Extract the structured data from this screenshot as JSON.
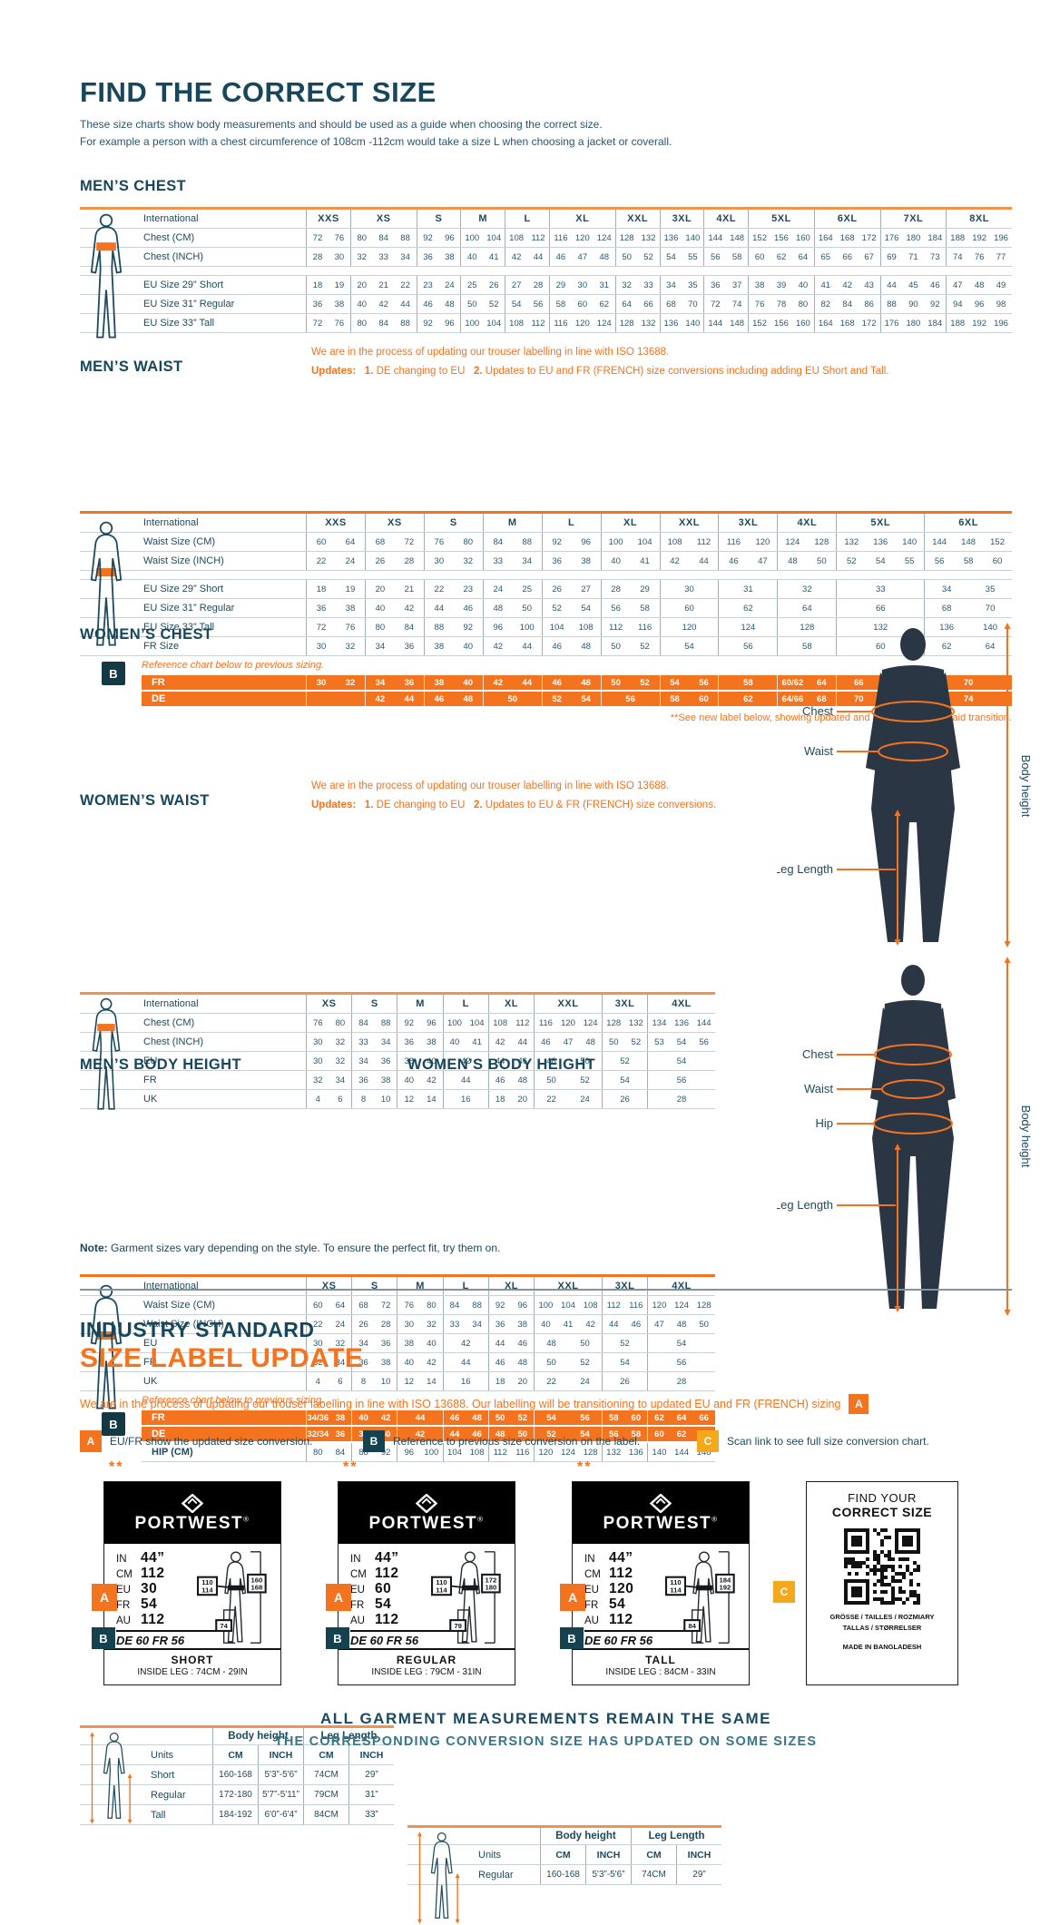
{
  "colors": {
    "teal": "#17475c",
    "orange": "#f4731f",
    "amber": "#f6a81c",
    "label_black": "#000000"
  },
  "page": {
    "title": "FIND THE CORRECT SIZE",
    "intro_line1": "These size charts show body measurements and should be used as a guide when choosing the correct size.",
    "intro_line2": "For example a person with a chest circumference of 108cm -112cm would take a size L when choosing a jacket or coverall.",
    "note_label": "Note:",
    "note_text": " Garment sizes vary depending on the style. To ensure the perfect fit, try them on."
  },
  "tables": {
    "mens_chest": {
      "title": "MEN’S CHEST",
      "header_label": "International",
      "columns": [
        {
          "label": "XXS",
          "span": 2
        },
        {
          "label": "XS",
          "span": 3
        },
        {
          "label": "S",
          "span": 2
        },
        {
          "label": "M",
          "span": 2
        },
        {
          "label": "L",
          "span": 2
        },
        {
          "label": "XL",
          "span": 3
        },
        {
          "label": "XXL",
          "span": 2
        },
        {
          "label": "3XL",
          "span": 2
        },
        {
          "label": "4XL",
          "span": 2
        },
        {
          "label": "5XL",
          "span": 3
        },
        {
          "label": "6XL",
          "span": 3
        },
        {
          "label": "7XL",
          "span": 3
        },
        {
          "label": "8XL",
          "span": 3
        }
      ],
      "rows": [
        {
          "label": "Chest (CM)",
          "cells": [
            "72 76",
            "80 84 88",
            "92 96",
            "100 104",
            "108 112",
            "116 120 124",
            "128 132",
            "136 140",
            "144 148",
            "152 156 160",
            "164 168 172",
            "176 180 184",
            "188 192 196"
          ]
        },
        {
          "label": "Chest (INCH)",
          "cells": [
            "28 30",
            "32 33 34",
            "36 38",
            "40 41",
            "42 44",
            "46 47 48",
            "50 52",
            "54 55",
            "56 58",
            "60 62 64",
            "65 66 67",
            "69 71 73",
            "74 76 77"
          ]
        },
        {
          "gap": true
        },
        {
          "label": "EU Size 29” Short",
          "cells": [
            "18 19",
            "20 21 22",
            "23 24",
            "25 26",
            "27 28",
            "29 30 31",
            "32 33",
            "34 35",
            "36 37",
            "38 39 40",
            "41 42 43",
            "44 45 46",
            "47 48 49"
          ]
        },
        {
          "label": "EU Size 31” Regular",
          "cells": [
            "36 38",
            "40 42 44",
            "46 48",
            "50 52",
            "54 56",
            "58 60 62",
            "64 66",
            "68 70",
            "72 74",
            "76 78 80",
            "82 84 86",
            "88 90 92",
            "94 96 98"
          ]
        },
        {
          "label": "EU Size 33” Tall",
          "cells": [
            "72 76",
            "80 84 88",
            "92 96",
            "100 104",
            "108 112",
            "116 120 124",
            "128 132",
            "136 140",
            "144 148",
            "152 156 160",
            "164 168 172",
            "176 180 184",
            "188 192 196"
          ]
        }
      ]
    },
    "mens_waist": {
      "title": "MEN’S WAIST",
      "header_label": "International",
      "notice": {
        "line1": "We are in the process of updating our trouser labelling in line with ISO 13688.",
        "updates_label": "Updates:",
        "update1_num": "1.",
        "update1_text": "DE changing to EU",
        "update2_num": "2.",
        "update2_text": "Updates to EU and FR (FRENCH) size conversions including adding EU Short and Tall."
      },
      "columns": [
        {
          "label": "XXS",
          "span": 2
        },
        {
          "label": "XS",
          "span": 2
        },
        {
          "label": "S",
          "span": 2
        },
        {
          "label": "M",
          "span": 2
        },
        {
          "label": "L",
          "span": 2
        },
        {
          "label": "XL",
          "span": 2
        },
        {
          "label": "XXL",
          "span": 2
        },
        {
          "label": "3XL",
          "span": 2
        },
        {
          "label": "4XL",
          "span": 2
        },
        {
          "label": "5XL",
          "span": 3
        },
        {
          "label": "6XL",
          "span": 3
        }
      ],
      "rows": [
        {
          "label": "Waist Size (CM)",
          "cells": [
            "60 64",
            "68 72",
            "76 80",
            "84 88",
            "92 96",
            "100 104",
            "108 112",
            "116 120",
            "124 128",
            "132 136 140",
            "144 148 152"
          ]
        },
        {
          "label": "Waist Size (INCH)",
          "cells": [
            "22 24",
            "26 28",
            "30 32",
            "33 34",
            "36 38",
            "40 41",
            "42 44",
            "46 47",
            "48 50",
            "52 54 55",
            "56 58 60"
          ]
        },
        {
          "gap": true
        },
        {
          "label": "EU Size 29” Short",
          "cells": [
            "18 19",
            "20 21",
            "22 23",
            "24 25",
            "26 27",
            "28 29",
            "30",
            "31",
            "32",
            "33",
            "34 35"
          ]
        },
        {
          "label": "EU Size 31” Regular",
          "cells": [
            "36 38",
            "40 42",
            "44 46",
            "48 50",
            "52 54",
            "56 58",
            "60",
            "62",
            "64",
            "66",
            "68 70"
          ]
        },
        {
          "label": "EU Size 33” Tall",
          "cells": [
            "72 76",
            "80 84",
            "88 92",
            "96 100",
            "104 108",
            "112 116",
            "120",
            "124",
            "128",
            "132",
            "136 140"
          ]
        },
        {
          "label": "FR Size",
          "cells": [
            "30 32",
            "34 36",
            "38 40",
            "42 44",
            "46 48",
            "50 52",
            "54",
            "56",
            "58",
            "60",
            "62 64"
          ]
        }
      ],
      "reference": {
        "intro": "Reference chart below to previous sizing.",
        "badge": "B",
        "rows": [
          {
            "label": "FR",
            "style": "orange",
            "cells": [
              "30 32",
              "34 36",
              "38 40",
              "42 44",
              "46 48",
              "50 52",
              "54 56",
              "58",
              "60/62 64",
              "66 68",
              "70"
            ]
          },
          {
            "label": "DE",
            "style": "orange",
            "cells": [
              "",
              "42 44",
              "46 48",
              "50",
              "52 54",
              "56",
              "58 60",
              "62",
              "64/66 68",
              "70 72",
              "74"
            ]
          }
        ]
      },
      "footnote": "**See new label below, showing updated and previous sizing to aid transition."
    },
    "womens_chest": {
      "title": "WOMEN’S CHEST",
      "header_label": "International",
      "columns": [
        {
          "label": "XS",
          "span": 2
        },
        {
          "label": "S",
          "span": 2
        },
        {
          "label": "M",
          "span": 2
        },
        {
          "label": "L",
          "span": 2
        },
        {
          "label": "XL",
          "span": 2
        },
        {
          "label": "XXL",
          "span": 3
        },
        {
          "label": "3XL",
          "span": 2
        },
        {
          "label": "4XL",
          "span": 3
        }
      ],
      "rows": [
        {
          "label": "Chest (CM)",
          "cells": [
            "76 80",
            "84 88",
            "92 96",
            "100 104",
            "108 112",
            "116 120 124",
            "128 132",
            "134 136 144"
          ]
        },
        {
          "label": "Chest (INCH)",
          "cells": [
            "30 32",
            "33 34",
            "36 38",
            "40 41",
            "42 44",
            "46 47 48",
            "50 52",
            "53 54 56"
          ]
        },
        {
          "label": "EU",
          "cells": [
            "30 32",
            "34 36",
            "38 40",
            "42",
            "44 46",
            "48 50",
            "52",
            "54"
          ]
        },
        {
          "label": "FR",
          "cells": [
            "32 34",
            "36 38",
            "40 42",
            "44",
            "46 48",
            "50 52",
            "54",
            "56"
          ]
        },
        {
          "label": "UK",
          "cells": [
            "4 6",
            "8 10",
            "12 14",
            "16",
            "18 20",
            "22 24",
            "26",
            "28"
          ]
        }
      ]
    },
    "womens_waist": {
      "title": "WOMEN’S WAIST",
      "header_label": "International",
      "notice": {
        "line1": "We are in the process of updating our trouser labelling in line with ISO 13688.",
        "updates_label": "Updates:",
        "update1_num": "1.",
        "update1_text": "DE changing to EU",
        "update2_num": "2.",
        "update2_text": "Updates to EU & FR (FRENCH) size conversions."
      },
      "columns": [
        {
          "label": "XS",
          "span": 2
        },
        {
          "label": "S",
          "span": 2
        },
        {
          "label": "M",
          "span": 2
        },
        {
          "label": "L",
          "span": 2
        },
        {
          "label": "XL",
          "span": 2
        },
        {
          "label": "XXL",
          "span": 3
        },
        {
          "label": "3XL",
          "span": 2
        },
        {
          "label": "4XL",
          "span": 3
        }
      ],
      "rows": [
        {
          "label": "Waist Size (CM)",
          "cells": [
            "60 64",
            "68 72",
            "76 80",
            "84 88",
            "92 96",
            "100 104 108",
            "112 116",
            "120 124 128"
          ]
        },
        {
          "label": "Waist Size (INCH)",
          "cells": [
            "22 24",
            "26 28",
            "30 32",
            "33 34",
            "36 38",
            "40 41 42",
            "44 46",
            "47 48 50"
          ]
        },
        {
          "label": "EU",
          "cells": [
            "30 32",
            "34 36",
            "38 40",
            "42",
            "44 46",
            "48 50",
            "52",
            "54"
          ]
        },
        {
          "label": "FR",
          "cells": [
            "32 34",
            "36 38",
            "40 42",
            "44",
            "46 48",
            "50 52",
            "54",
            "56"
          ]
        },
        {
          "label": "UK",
          "cells": [
            "4 6",
            "8 10",
            "12 14",
            "16",
            "18 20",
            "22 24",
            "26",
            "28"
          ]
        }
      ],
      "reference": {
        "intro": "Reference chart below to previous sizing.",
        "badge": "B",
        "rows": [
          {
            "label": "FR",
            "style": "orange",
            "cells": [
              "34/36 38",
              "40 42",
              "44",
              "46 48",
              "50 52",
              "54 56",
              "58 60",
              "62 64 66"
            ]
          },
          {
            "label": "DE",
            "style": "orange",
            "cells": [
              "32/34 36",
              "38 40",
              "42",
              "44 46",
              "48 50",
              "52 54",
              "56 58",
              "60 62 64"
            ]
          },
          {
            "label": "HIP (CM)",
            "style": "plain",
            "cells": [
              "80 84",
              "88 92",
              "96 100",
              "104 108",
              "112 116",
              "120 124 128",
              "132 136",
              "140 144 148"
            ]
          }
        ]
      }
    },
    "mens_body_height": {
      "title": "MEN’S BODY HEIGHT",
      "group1": "Body height",
      "group2": "Leg Length",
      "units_label": "Units",
      "units": [
        "CM",
        "INCH",
        "CM",
        "INCH"
      ],
      "rows": [
        {
          "label": "Short",
          "cells": [
            "160-168",
            "5'3”-5'6”",
            "74CM",
            "29”"
          ]
        },
        {
          "label": "Regular",
          "cells": [
            "172-180",
            "5'7”-5'11”",
            "79CM",
            "31”"
          ]
        },
        {
          "label": "Tall",
          "cells": [
            "184-192",
            "6'0”-6'4”",
            "84CM",
            "33”"
          ]
        }
      ]
    },
    "womens_body_height": {
      "title": "WOMEN’S BODY HEIGHT",
      "group1": "Body height",
      "group2": "Leg Length",
      "units_label": "Units",
      "units": [
        "CM",
        "INCH",
        "CM",
        "INCH"
      ],
      "rows": [
        {
          "label": "Regular",
          "cells": [
            "160-168",
            "5'3”-5'6”",
            "74CM",
            "29”"
          ]
        }
      ]
    }
  },
  "figures": {
    "male": {
      "chest_label": "Chest",
      "waist_label": "Waist",
      "leg_label": "Leg Length",
      "height_label": "Body height"
    },
    "female": {
      "chest_label": "Chest",
      "waist_label": "Waist",
      "hip_label": "Hip",
      "leg_label": "Leg Length",
      "height_label": "Body height"
    }
  },
  "update_section": {
    "heading_line1": "INDUSTRY STANDARD",
    "heading_line2": "SIZE LABEL UPDATE",
    "intro": "We are in the process of updating our trouser labelling in line with ISO 13688. Our labelling will be transitioning to updated EU and FR (FRENCH) sizing",
    "intro_badge": "A",
    "legend": [
      {
        "badge": "A",
        "style": "a",
        "text": "EU/FR show the updated size conversion."
      },
      {
        "badge": "B",
        "style": "b",
        "text": "Reference to previous size conversion on the label."
      },
      {
        "badge": "C",
        "style": "c",
        "text": "Scan link to see full size conversion chart."
      }
    ],
    "labels": [
      {
        "asterisks": "**",
        "brand": "PORTWEST",
        "reg": "®",
        "badge_a": "A",
        "badge_b": "B",
        "sizes": [
          [
            "IN",
            "44”"
          ],
          [
            "CM",
            "112"
          ],
          [
            "EU",
            "30"
          ],
          [
            "FR",
            "54"
          ],
          [
            "AU",
            "112"
          ]
        ],
        "previous": "DE 60 FR 56",
        "waist_top": "110",
        "waist_bottom": "114",
        "height_top": "160",
        "height_bottom": "168",
        "leg": "74",
        "fit": "SHORT",
        "inside_leg": "INSIDE LEG : 74CM - 29IN"
      },
      {
        "asterisks": "**",
        "brand": "PORTWEST",
        "reg": "®",
        "badge_a": "A",
        "badge_b": "B",
        "sizes": [
          [
            "IN",
            "44”"
          ],
          [
            "CM",
            "112"
          ],
          [
            "EU",
            "60"
          ],
          [
            "FR",
            "54"
          ],
          [
            "AU",
            "112"
          ]
        ],
        "previous": "DE 60 FR 56",
        "waist_top": "110",
        "waist_bottom": "114",
        "height_top": "172",
        "height_bottom": "180",
        "leg": "79",
        "fit": "REGULAR",
        "inside_leg": "INSIDE LEG : 79CM - 31IN"
      },
      {
        "asterisks": "**",
        "brand": "PORTWEST",
        "reg": "®",
        "badge_a": "A",
        "badge_b": "B",
        "sizes": [
          [
            "IN",
            "44”"
          ],
          [
            "CM",
            "112"
          ],
          [
            "EU",
            "120"
          ],
          [
            "FR",
            "54"
          ],
          [
            "AU",
            "112"
          ]
        ],
        "previous": "DE 60 FR 56",
        "waist_top": "110",
        "waist_bottom": "114",
        "height_top": "184",
        "height_bottom": "192",
        "leg": "84",
        "fit": "TALL",
        "inside_leg": "INSIDE LEG : 84CM - 33IN"
      }
    ],
    "qr_card": {
      "badge": "C",
      "title_line1": "FIND YOUR",
      "title_line2": "CORRECT SIZE",
      "languages_line1": "GRÖSSE / TAILLES / ROZMIARY",
      "languages_line2": "TALLAS / STØRRELSER",
      "origin": "MADE IN BANGLADESH"
    }
  },
  "footer": {
    "line1": "ALL GARMENT MEASUREMENTS REMAIN THE SAME",
    "line2": "THE CORRESPONDING CONVERSION SIZE HAS UPDATED ON SOME SIZES"
  }
}
